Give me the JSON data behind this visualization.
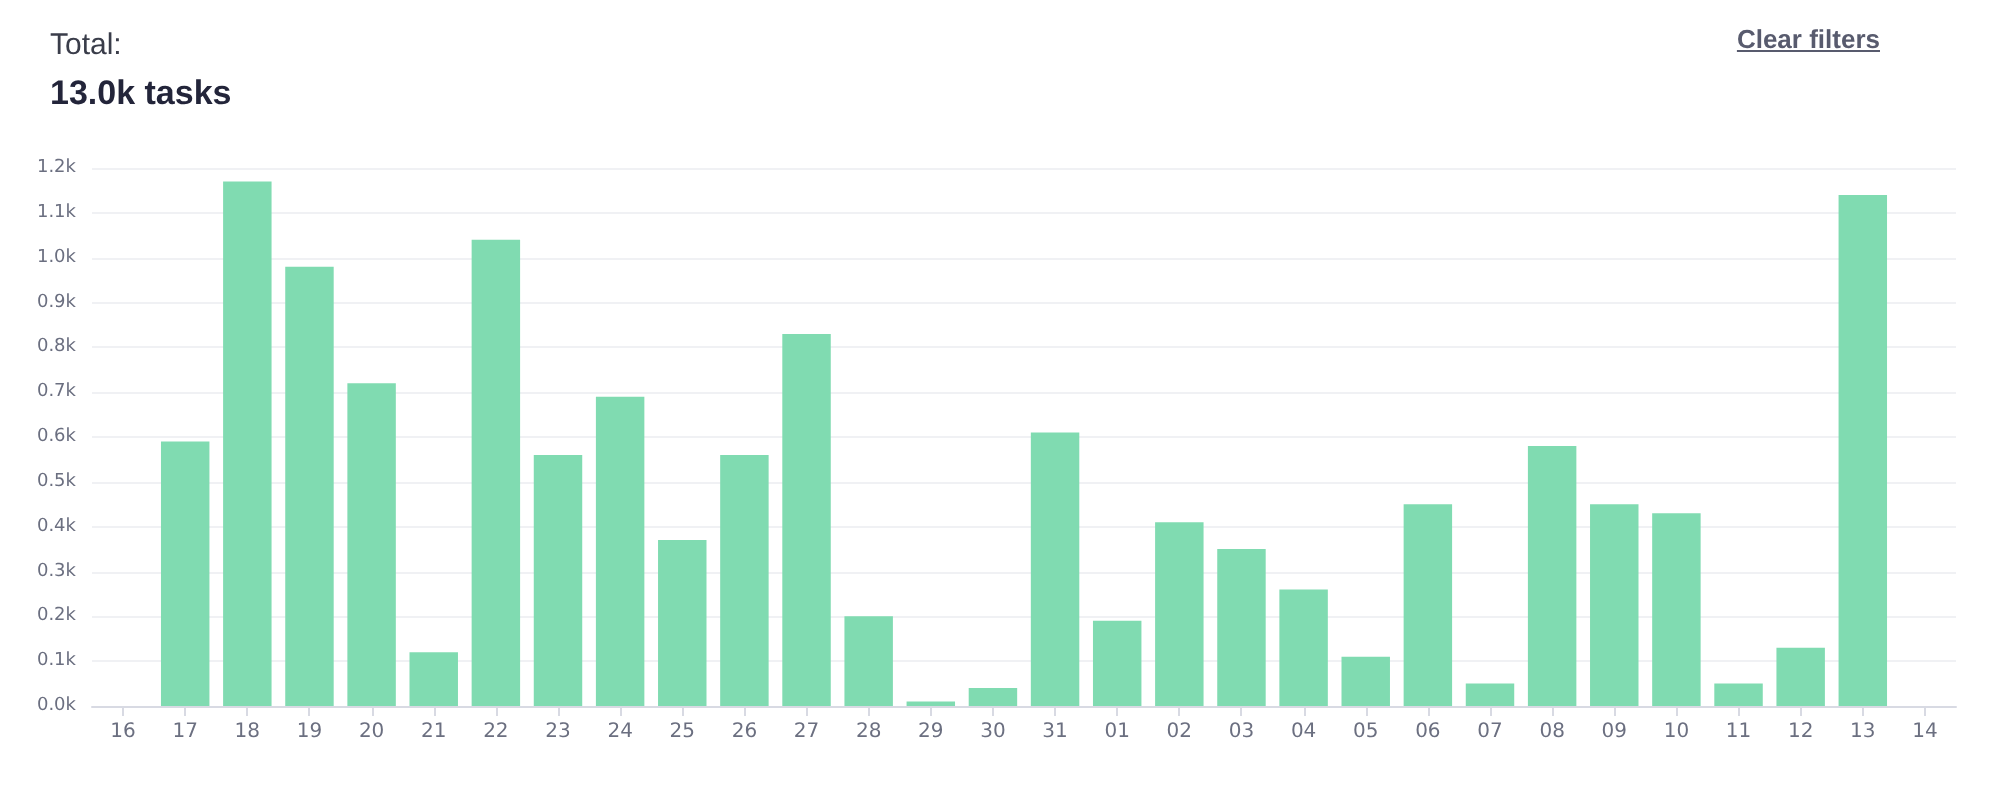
{
  "chart_data": {
    "type": "bar",
    "title": "Total:",
    "subtitle": "13.0k tasks",
    "annotations": [
      "Clear filters"
    ],
    "categories": [
      "16",
      "17",
      "18",
      "19",
      "20",
      "21",
      "22",
      "23",
      "24",
      "25",
      "26",
      "27",
      "28",
      "29",
      "30",
      "31",
      "01",
      "02",
      "03",
      "04",
      "05",
      "06",
      "07",
      "08",
      "09",
      "10",
      "11",
      "12",
      "13",
      "14"
    ],
    "values": [
      null,
      0.59,
      1.17,
      0.98,
      0.72,
      0.12,
      1.04,
      0.56,
      0.69,
      0.37,
      0.56,
      0.83,
      0.2,
      0.01,
      0.04,
      0.61,
      0.19,
      0.41,
      0.35,
      0.26,
      0.11,
      0.45,
      0.05,
      0.58,
      0.45,
      0.43,
      0.05,
      0.13,
      1.14,
      null
    ],
    "color": "#80dbb1",
    "ylim": [
      0,
      1.2
    ],
    "yticks": [
      {
        "value": 0,
        "label": "0.0k"
      },
      {
        "value": 0.1,
        "label": "0.1k"
      },
      {
        "value": 0.2,
        "label": "0.2k"
      },
      {
        "value": 0.3,
        "label": "0.3k"
      },
      {
        "value": 0.4,
        "label": "0.4k"
      },
      {
        "value": 0.5,
        "label": "0.5k"
      },
      {
        "value": 0.6,
        "label": "0.6k"
      },
      {
        "value": 0.7,
        "label": "0.7k"
      },
      {
        "value": 0.8,
        "label": "0.8k"
      },
      {
        "value": 0.9,
        "label": "0.9k"
      },
      {
        "value": 1.0,
        "label": "1.0k"
      },
      {
        "value": 1.1,
        "label": "1.1k"
      },
      {
        "value": 1.2,
        "label": "1.2k"
      }
    ],
    "grid": "y"
  }
}
